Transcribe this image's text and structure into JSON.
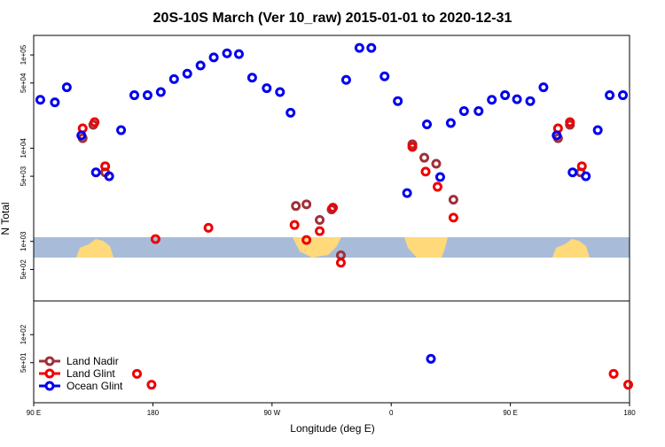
{
  "chart_data": {
    "type": "scatter",
    "title": "20S-10S March (Ver 10_raw)   2015-01-01 to 2020-12-31",
    "x_label": "Longitude (deg E)",
    "y_label": "N Total",
    "log_y": true,
    "legend": "bottom-left",
    "xlim": [
      90,
      540
    ],
    "xticks": [
      {
        "value": 90,
        "label": "90 E"
      },
      {
        "value": 180,
        "label": "180"
      },
      {
        "value": 270,
        "label": "90 W"
      },
      {
        "value": 360,
        "label": "0"
      },
      {
        "value": 450,
        "label": "90 E"
      },
      {
        "value": 540,
        "label": "180"
      }
    ],
    "ylim": [
      18.6,
      162000
    ],
    "yticks": [
      {
        "value": 100000,
        "label": "1e+05"
      },
      {
        "value": 50000,
        "label": "5e+04"
      },
      {
        "value": 10000,
        "label": "1e+04"
      },
      {
        "value": 5000,
        "label": "5e+03"
      },
      {
        "value": 1000,
        "label": "1e+03"
      },
      {
        "value": 500,
        "label": "5e+02"
      },
      {
        "value": 100,
        "label": "1e+02"
      },
      {
        "value": 50,
        "label": "5e+01"
      }
    ],
    "series": [
      {
        "name": "Land Nadir",
        "color": "#a0303a",
        "x": [
          127,
          135,
          144,
          288,
          296,
          306,
          315,
          322,
          376,
          385,
          394,
          407,
          486,
          495,
          503
        ],
        "values": [
          12800,
          17800,
          5500,
          2400,
          2500,
          1700,
          2200,
          710,
          11000,
          7900,
          6800,
          2800,
          12800,
          17800,
          5500
        ]
      },
      {
        "name": "Land Glint",
        "color": "#ee0000",
        "x": [
          127,
          136,
          144,
          182,
          222,
          287,
          296,
          306,
          316,
          322,
          376,
          386,
          395,
          407,
          486,
          495,
          504,
          168,
          179,
          528,
          539
        ],
        "values": [
          16300,
          19000,
          6400,
          1060,
          1400,
          1500,
          1035,
          1290,
          2300,
          590,
          10300,
          5600,
          3850,
          1800,
          16300,
          19000,
          6400,
          38,
          29,
          38,
          29
        ]
      },
      {
        "name": "Ocean Glint",
        "color": "#0000ee",
        "x": [
          95,
          106,
          115,
          126,
          137,
          147,
          156,
          166,
          176,
          186,
          196,
          206,
          216,
          226,
          236,
          245,
          255,
          266,
          276,
          284,
          326,
          336,
          345,
          355,
          365,
          372,
          387,
          397,
          405,
          415,
          426,
          436,
          446,
          455,
          465,
          475,
          485,
          497,
          507,
          516,
          525,
          535,
          390
        ],
        "values": [
          33000,
          31000,
          45000,
          13700,
          5500,
          5000,
          15600,
          37000,
          37000,
          40000,
          55000,
          63000,
          77000,
          94000,
          104000,
          102000,
          57000,
          44000,
          40000,
          24000,
          54000,
          119000,
          119000,
          59000,
          32000,
          3300,
          18000,
          4900,
          18600,
          25000,
          25000,
          33000,
          37000,
          33500,
          32000,
          45000,
          13700,
          5500,
          5000,
          15600,
          37000,
          37000,
          55
        ]
      }
    ]
  }
}
